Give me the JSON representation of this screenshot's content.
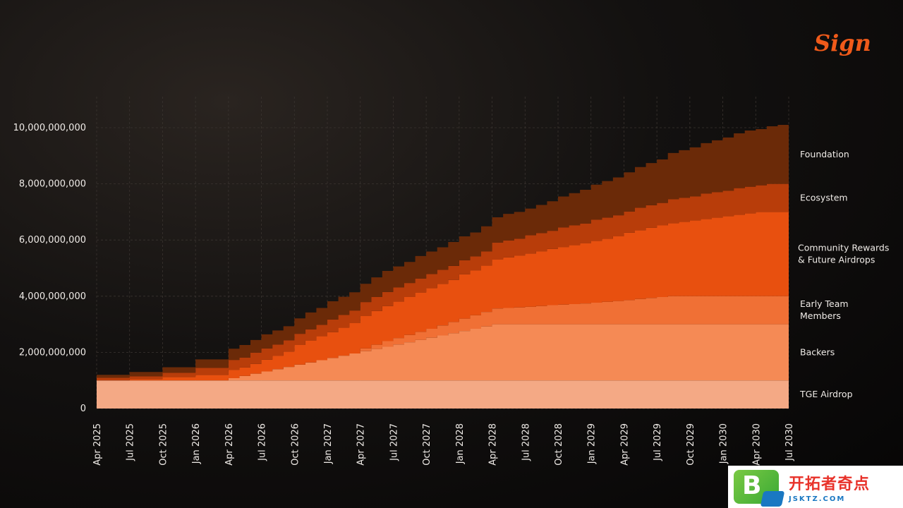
{
  "logo": {
    "text": "Sign",
    "color": "#f05a1a"
  },
  "chart_data": {
    "type": "area",
    "title": "",
    "xlabel": "",
    "ylabel": "",
    "step": true,
    "ylim": [
      0,
      11000000000
    ],
    "y_ticks": [
      0,
      2000000000,
      4000000000,
      6000000000,
      8000000000,
      10000000000
    ],
    "y_tick_labels": [
      "0",
      "2,000,000,000",
      "4,000,000,000",
      "6,000,000,000",
      "8,000,000,000",
      "10,000,000,000"
    ],
    "x_tick_labels": [
      "Apr 2025",
      "Jul 2025",
      "Oct 2025",
      "Jan 2026",
      "Apr 2026",
      "Jul 2026",
      "Oct 2026",
      "Jan 2027",
      "Apr 2027",
      "Jul 2027",
      "Oct 2027",
      "Jan 2028",
      "Apr 2028",
      "Jul 2028",
      "Oct 2028",
      "Jan 2029",
      "Apr 2029",
      "Jul 2029",
      "Oct 2029",
      "Jan 2030",
      "Apr 2030",
      "Jul 2030"
    ],
    "grid": true,
    "legend": "right",
    "months": [
      "2025-04",
      "2025-05",
      "2025-06",
      "2025-07",
      "2025-08",
      "2025-09",
      "2025-10",
      "2025-11",
      "2025-12",
      "2026-01",
      "2026-02",
      "2026-03",
      "2026-04",
      "2026-05",
      "2026-06",
      "2026-07",
      "2026-08",
      "2026-09",
      "2026-10",
      "2026-11",
      "2026-12",
      "2027-01",
      "2027-02",
      "2027-03",
      "2027-04",
      "2027-05",
      "2027-06",
      "2027-07",
      "2027-08",
      "2027-09",
      "2027-10",
      "2027-11",
      "2027-12",
      "2028-01",
      "2028-02",
      "2028-03",
      "2028-04",
      "2028-05",
      "2028-06",
      "2028-07",
      "2028-08",
      "2028-09",
      "2028-10",
      "2028-11",
      "2028-12",
      "2029-01",
      "2029-02",
      "2029-03",
      "2029-04",
      "2029-05",
      "2029-06",
      "2029-07",
      "2029-08",
      "2029-09",
      "2029-10",
      "2029-11",
      "2029-12",
      "2030-01",
      "2030-02",
      "2030-03",
      "2030-04",
      "2030-05",
      "2030-06"
    ],
    "series": [
      {
        "name": "TGE Airdrop",
        "color": "#f4a985",
        "values": [
          1000000000,
          1000000000,
          1000000000,
          1000000000,
          1000000000,
          1000000000,
          1000000000,
          1000000000,
          1000000000,
          1000000000,
          1000000000,
          1000000000,
          1000000000,
          1000000000,
          1000000000,
          1000000000,
          1000000000,
          1000000000,
          1000000000,
          1000000000,
          1000000000,
          1000000000,
          1000000000,
          1000000000,
          1000000000,
          1000000000,
          1000000000,
          1000000000,
          1000000000,
          1000000000,
          1000000000,
          1000000000,
          1000000000,
          1000000000,
          1000000000,
          1000000000,
          1000000000,
          1000000000,
          1000000000,
          1000000000,
          1000000000,
          1000000000,
          1000000000,
          1000000000,
          1000000000,
          1000000000,
          1000000000,
          1000000000,
          1000000000,
          1000000000,
          1000000000,
          1000000000,
          1000000000,
          1000000000,
          1000000000,
          1000000000,
          1000000000,
          1000000000,
          1000000000,
          1000000000,
          1000000000,
          1000000000,
          1000000000
        ]
      },
      {
        "name": "Backers",
        "color": "#f58a55",
        "values": [
          0,
          0,
          0,
          0,
          0,
          0,
          0,
          0,
          0,
          0,
          0,
          0,
          80000000,
          160000000,
          240000000,
          320000000,
          400000000,
          480000000,
          560000000,
          640000000,
          720000000,
          800000000,
          880000000,
          960000000,
          1040000000,
          1120000000,
          1200000000,
          1280000000,
          1360000000,
          1440000000,
          1520000000,
          1600000000,
          1680000000,
          1760000000,
          1840000000,
          1920000000,
          2000000000,
          2000000000,
          2000000000,
          2000000000,
          2000000000,
          2000000000,
          2000000000,
          2000000000,
          2000000000,
          2000000000,
          2000000000,
          2000000000,
          2000000000,
          2000000000,
          2000000000,
          2000000000,
          2000000000,
          2000000000,
          2000000000,
          2000000000,
          2000000000,
          2000000000,
          2000000000,
          2000000000,
          2000000000,
          2000000000,
          2000000000
        ]
      },
      {
        "name": "Early Team Members",
        "color": "#f07035",
        "values": [
          0,
          0,
          0,
          0,
          0,
          0,
          0,
          0,
          0,
          0,
          0,
          0,
          0,
          0,
          0,
          0,
          0,
          0,
          0,
          0,
          0,
          0,
          0,
          0,
          100000000,
          150000000,
          200000000,
          230000000,
          260000000,
          290000000,
          320000000,
          360000000,
          400000000,
          440000000,
          480000000,
          520000000,
          560000000,
          580000000,
          600000000,
          620000000,
          650000000,
          680000000,
          700000000,
          720000000,
          740000000,
          770000000,
          800000000,
          830000000,
          860000000,
          900000000,
          940000000,
          970000000,
          1000000000,
          1000000000,
          1000000000,
          1000000000,
          1000000000,
          1000000000,
          1000000000,
          1000000000,
          1000000000,
          1000000000,
          1000000000
        ]
      },
      {
        "name": "Community Rewards & Future Airdrops",
        "color": "#e8500f",
        "values": [
          0,
          0,
          0,
          50000000,
          50000000,
          50000000,
          120000000,
          120000000,
          120000000,
          200000000,
          200000000,
          200000000,
          300000000,
          300000000,
          350000000,
          420000000,
          480000000,
          550000000,
          700000000,
          780000000,
          860000000,
          920000000,
          1000000000,
          1080000000,
          1150000000,
          1200000000,
          1250000000,
          1300000000,
          1350000000,
          1400000000,
          1450000000,
          1480000000,
          1500000000,
          1580000000,
          1600000000,
          1650000000,
          1750000000,
          1800000000,
          1850000000,
          1900000000,
          1950000000,
          2000000000,
          2050000000,
          2100000000,
          2150000000,
          2200000000,
          2250000000,
          2300000000,
          2400000000,
          2450000000,
          2500000000,
          2550000000,
          2600000000,
          2650000000,
          2700000000,
          2750000000,
          2800000000,
          2850000000,
          2900000000,
          2950000000,
          3000000000,
          3000000000,
          3000000000
        ]
      },
      {
        "name": "Ecosystem",
        "color": "#b83d0a",
        "values": [
          100000000,
          100000000,
          100000000,
          100000000,
          100000000,
          100000000,
          150000000,
          150000000,
          150000000,
          250000000,
          250000000,
          250000000,
          350000000,
          350000000,
          400000000,
          400000000,
          400000000,
          400000000,
          400000000,
          400000000,
          400000000,
          450000000,
          450000000,
          450000000,
          500000000,
          500000000,
          500000000,
          500000000,
          500000000,
          500000000,
          500000000,
          500000000,
          500000000,
          500000000,
          500000000,
          500000000,
          600000000,
          600000000,
          600000000,
          650000000,
          650000000,
          650000000,
          700000000,
          700000000,
          700000000,
          750000000,
          750000000,
          750000000,
          750000000,
          800000000,
          800000000,
          800000000,
          850000000,
          850000000,
          850000000,
          900000000,
          900000000,
          900000000,
          950000000,
          950000000,
          950000000,
          1000000000,
          1000000000
        ]
      },
      {
        "name": "Foundation",
        "color": "#6b2a08",
        "values": [
          100000000,
          100000000,
          100000000,
          150000000,
          150000000,
          150000000,
          200000000,
          200000000,
          200000000,
          300000000,
          300000000,
          300000000,
          400000000,
          450000000,
          450000000,
          500000000,
          500000000,
          500000000,
          550000000,
          600000000,
          600000000,
          650000000,
          650000000,
          650000000,
          650000000,
          700000000,
          750000000,
          750000000,
          750000000,
          800000000,
          800000000,
          800000000,
          850000000,
          850000000,
          850000000,
          900000000,
          900000000,
          950000000,
          950000000,
          950000000,
          1000000000,
          1050000000,
          1100000000,
          1150000000,
          1200000000,
          1250000000,
          1300000000,
          1350000000,
          1400000000,
          1450000000,
          1500000000,
          1550000000,
          1650000000,
          1700000000,
          1750000000,
          1800000000,
          1850000000,
          1900000000,
          1950000000,
          2000000000,
          2000000000,
          2050000000,
          2100000000
        ]
      }
    ]
  }
}
